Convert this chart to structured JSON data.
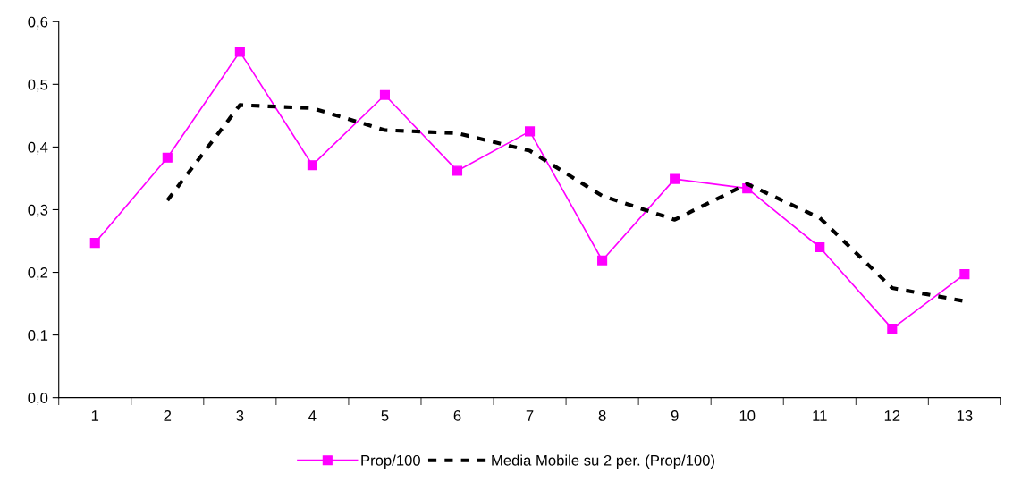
{
  "chart_data": {
    "type": "line",
    "categories": [
      "1",
      "2",
      "3",
      "4",
      "5",
      "6",
      "7",
      "8",
      "9",
      "10",
      "11",
      "12",
      "13"
    ],
    "series": [
      {
        "name": "Prop/100",
        "color": "#ff00ff",
        "marker": "square",
        "line_style": "solid",
        "values": [
          0.247,
          0.383,
          0.552,
          0.371,
          0.483,
          0.362,
          0.425,
          0.219,
          0.349,
          0.334,
          0.24,
          0.11,
          0.197
        ]
      },
      {
        "name": "Media Mobile su 2 per. (Prop/100)",
        "color": "#000000",
        "marker": "none",
        "line_style": "dashed",
        "values": [
          null,
          0.315,
          0.467,
          0.462,
          0.427,
          0.422,
          0.394,
          0.322,
          0.284,
          0.341,
          0.287,
          0.175,
          0.154
        ]
      }
    ],
    "ylim": [
      0,
      0.6
    ],
    "yticks": [
      {
        "value": 0,
        "label": "0,0"
      },
      {
        "value": 0.1,
        "label": "0,1"
      },
      {
        "value": 0.2,
        "label": "0,2"
      },
      {
        "value": 0.3,
        "label": "0,3"
      },
      {
        "value": 0.4,
        "label": "0,4"
      },
      {
        "value": 0.5,
        "label": "0,5"
      },
      {
        "value": 0.6,
        "label": "0,6"
      }
    ],
    "grid": false,
    "legend": "bottom"
  }
}
